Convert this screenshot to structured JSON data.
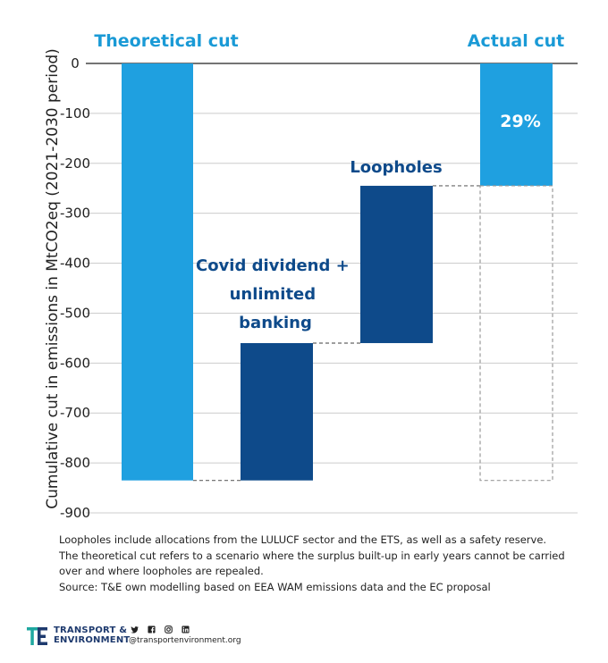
{
  "chart_data": {
    "type": "bar",
    "subtype": "waterfall",
    "ylabel": "Cumulative cut in emissions in MtCO2eq (2021-2030 period)",
    "ylim": [
      -900,
      0
    ],
    "yticks": [
      0,
      -100,
      -200,
      -300,
      -400,
      -500,
      -600,
      -700,
      -800,
      -900
    ],
    "grid": true,
    "bars": [
      {
        "name": "Theoretical cut",
        "label": "Theoretical cut",
        "start": 0,
        "end": -835,
        "color": "#1fa0e0",
        "style": "solid"
      },
      {
        "name": "Covid dividend + unlimited banking",
        "label_lines": [
          "Covid dividend +",
          "unlimited",
          "banking"
        ],
        "start": -835,
        "end": -560,
        "color": "#0e4a8a",
        "style": "solid"
      },
      {
        "name": "Loopholes",
        "label": "Loopholes",
        "start": -560,
        "end": -245,
        "color": "#0e4a8a",
        "style": "solid"
      },
      {
        "name": "Actual cut",
        "label": "Actual cut",
        "start": 0,
        "end": -245,
        "color": "#1fa0e0",
        "style": "solid",
        "value_label": "29%"
      },
      {
        "name": "Actual cut remainder",
        "start": -245,
        "end": -835,
        "color": "#999999",
        "style": "dashed-outline"
      }
    ]
  },
  "notes": {
    "line1": "Loopholes include allocations from the LULUCF sector and the ETS, as well as a safety reserve.",
    "line2": "The theoretical cut refers to a scenario where the surplus built-up in early years cannot be carried over and where loopholes are repealed.",
    "line3": "Source: T&E own modelling based on EEA WAM emissions data and the EC proposal"
  },
  "footer": {
    "brand_line1": "TRANSPORT &",
    "brand_line2": "ENVIRONMENT",
    "handle": "@transportenvironment.org",
    "icons": [
      "twitter-icon",
      "facebook-icon",
      "instagram-icon",
      "linkedin-icon"
    ]
  }
}
